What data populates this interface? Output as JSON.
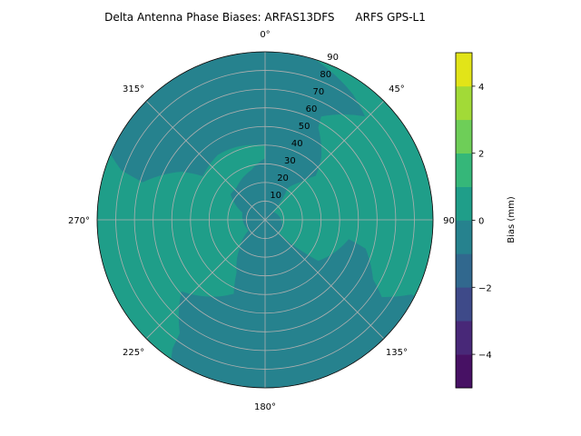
{
  "chart_data": {
    "type": "polar-contour",
    "title": "Delta Antenna Phase Biases: ARFAS13DFS      ARFS GPS-L1",
    "angular_ticks": [
      {
        "deg": 0,
        "label": "0°"
      },
      {
        "deg": 45,
        "label": "45°"
      },
      {
        "deg": 90,
        "label": "90°"
      },
      {
        "deg": 135,
        "label": "135°"
      },
      {
        "deg": 180,
        "label": "180°"
      },
      {
        "deg": 225,
        "label": "225°"
      },
      {
        "deg": 270,
        "label": "270°"
      },
      {
        "deg": 315,
        "label": "315°"
      }
    ],
    "angular_direction": "clockwise",
    "angular_zero": "top",
    "radial_ticks": [
      10,
      20,
      30,
      40,
      50,
      60,
      70,
      80,
      90
    ],
    "radial_range": [
      0,
      90
    ],
    "radial_label_angle": 22.5,
    "grid": true,
    "background_level": [
      0,
      1
    ],
    "contour_regions": [
      {
        "level": [
          -1,
          0
        ],
        "points_az_r": [
          [
            293,
            90
          ],
          [
            305,
            90
          ],
          [
            320,
            90
          ],
          [
            335,
            90
          ],
          [
            350,
            90
          ],
          [
            5,
            90
          ],
          [
            17,
            90
          ],
          [
            26,
            86
          ],
          [
            35,
            82
          ],
          [
            44,
            77
          ],
          [
            28.5,
            63
          ],
          [
            30,
            57
          ],
          [
            42,
            45
          ],
          [
            49,
            36
          ],
          [
            43,
            27.5
          ],
          [
            35.5,
            21
          ],
          [
            45,
            6
          ],
          [
            114,
            10
          ],
          [
            135,
            10
          ],
          [
            127.6,
            36
          ],
          [
            103,
            46
          ],
          [
            106,
            56
          ],
          [
            118.8,
            66
          ],
          [
            123.5,
            75
          ],
          [
            117,
            88
          ],
          [
            117,
            90
          ],
          [
            130,
            90
          ],
          [
            145,
            90
          ],
          [
            160,
            90
          ],
          [
            175,
            90
          ],
          [
            190,
            90
          ],
          [
            205,
            90
          ],
          [
            214,
            90
          ],
          [
            215.7,
            85
          ],
          [
            217,
            76
          ],
          [
            229.5,
            59
          ],
          [
            203,
            43
          ],
          [
            208.5,
            32
          ],
          [
            221.8,
            20.6
          ],
          [
            237.5,
            10.5
          ],
          [
            288,
            12.8
          ],
          [
            306.5,
            23
          ],
          [
            318,
            23
          ],
          [
            344.7,
            27.7
          ],
          [
            0,
            33
          ],
          [
            0,
            39.7
          ],
          [
            338,
            42
          ],
          [
            324,
            43
          ],
          [
            305,
            40.7
          ],
          [
            300,
            51.6
          ],
          [
            287,
            68.7
          ],
          [
            289,
            81.5
          ],
          [
            293,
            90
          ]
        ]
      }
    ],
    "colorbar": {
      "label": "Bias (mm)",
      "range": [
        -5,
        5
      ],
      "levels": [
        -5,
        -4,
        -3,
        -2,
        -1,
        0,
        1,
        2,
        3,
        4,
        5
      ],
      "ticks": [
        -4,
        -2,
        0,
        2,
        4
      ],
      "tick_labels": [
        "−4",
        "−2",
        "0",
        "2",
        "4"
      ],
      "colormap": "viridis",
      "colors": [
        "#471164",
        "#482878",
        "#3e4a89",
        "#31688e",
        "#26828e",
        "#1f9e89",
        "#35b779",
        "#6ece58",
        "#a2da37",
        "#e2e418"
      ]
    },
    "grid_color": "#b0b0b0"
  }
}
